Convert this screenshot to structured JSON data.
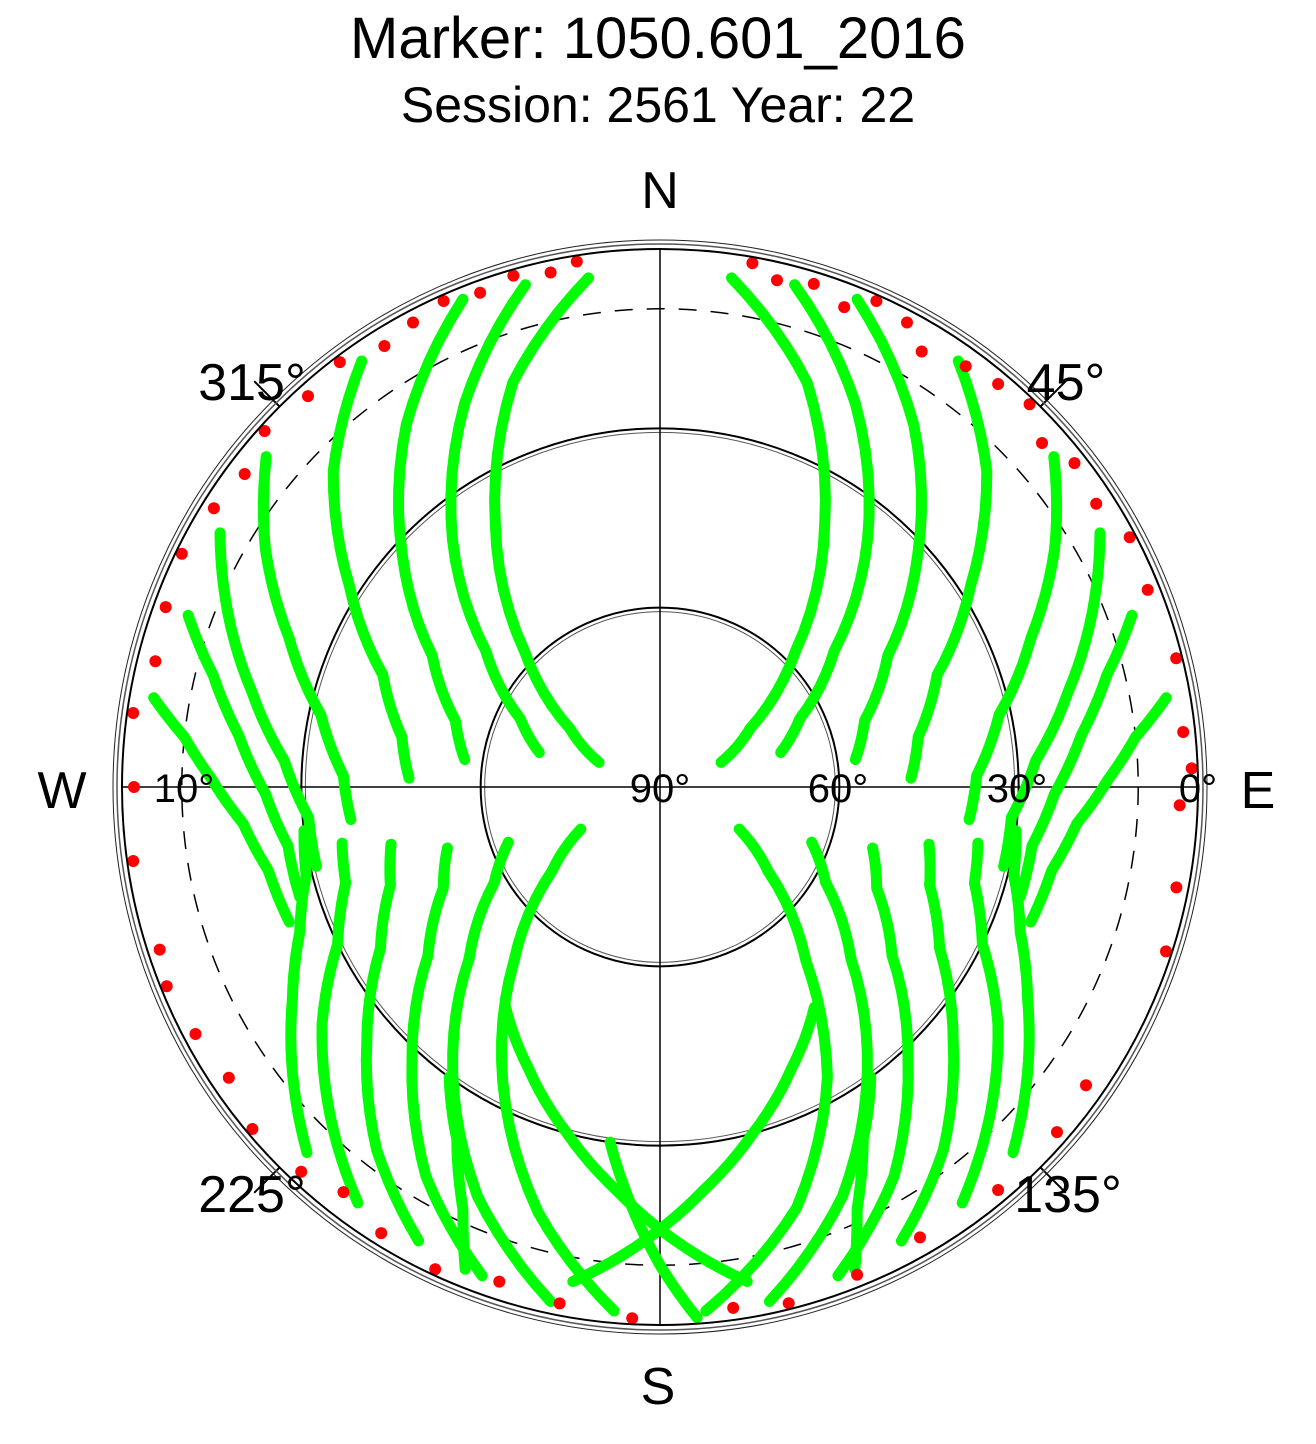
{
  "chart_data": {
    "type": "scatter",
    "projection": "polar sky plot (azimuth / elevation)",
    "title": "Marker: 1050.601_2016",
    "subtitle": "Session: 2561 Year: 22",
    "directions": {
      "north": "N",
      "south": "S",
      "east": "E",
      "west": "W"
    },
    "azimuth_labels": [
      {
        "az": 45,
        "text": "45°"
      },
      {
        "az": 135,
        "text": "135°"
      },
      {
        "az": 225,
        "text": "225°"
      },
      {
        "az": 315,
        "text": "315°"
      }
    ],
    "elevation_labels": [
      {
        "elev": 0,
        "side": "east",
        "text": "0°"
      },
      {
        "elev": 30,
        "side": "east",
        "text": "30°"
      },
      {
        "elev": 60,
        "side": "east",
        "text": "60°"
      },
      {
        "elev": 90,
        "side": "east",
        "text": "90°"
      },
      {
        "elev": 10,
        "side": "west",
        "text": "10°"
      }
    ],
    "elevation_circles": [
      0,
      30,
      60
    ],
    "cutoff_circle": {
      "elev": 10,
      "style": "dashed"
    },
    "elevation_range": [
      0,
      90
    ],
    "grid": true,
    "colors": {
      "tracks": "#00ff00",
      "low_elevation": "#ff0000",
      "grid": "#000000",
      "background": "#ffffff"
    },
    "series": [
      {
        "color": "#00ff00",
        "tracks": [
          {
            "az": [
              8,
              20,
              32,
              45,
              57,
              68
            ],
            "elev": [
              4,
              18,
              38,
              58,
              72,
              79
            ]
          },
          {
            "az": [
              15,
              27,
              40,
              52,
              64,
              74
            ],
            "elev": [
              3,
              18,
              36,
              53,
              64,
              69
            ]
          },
          {
            "az": [
              22,
              35,
              48,
              60,
              72,
              82
            ],
            "elev": [
              2,
              16,
              32,
              46,
              54,
              57
            ]
          },
          {
            "az": [
              35,
              46,
              57,
              68,
              79,
              88
            ],
            "elev": [
              3,
              14,
              28,
              40,
              46,
              48
            ]
          },
          {
            "az": [
              50,
              59,
              68,
              78,
              88,
              96
            ],
            "elev": [
              4,
              13,
              23,
              32,
              37,
              38
            ]
          },
          {
            "az": [
              60,
              68,
              77,
              86,
              95,
              103
            ],
            "elev": [
              5,
              12,
              20,
              27,
              31,
              31
            ]
          },
          {
            "az": [
              70,
              76,
              83,
              91,
              99,
              107
            ],
            "elev": [
              6,
              13,
              19,
              24,
              27,
              27
            ]
          },
          {
            "az": [
              80,
              84,
              89,
              95,
              102,
              110
            ],
            "elev": [
              4,
              10,
              15,
              20,
              23,
              24
            ]
          },
          {
            "az": [
              175,
              162,
              150,
              140,
              128,
              118
            ],
            "elev": [
              2,
              16,
              34,
              52,
              67,
              75
            ]
          },
          {
            "az": [
              168,
              156,
              144,
              132,
              120,
              110
            ],
            "elev": [
              2,
              15,
              31,
              47,
              58,
              63
            ]
          },
          {
            "az": [
              160,
              149,
              138,
              126,
              115,
              106
            ],
            "elev": [
              3,
              14,
              28,
              42,
              50,
              53
            ]
          },
          {
            "az": [
              152,
              142,
              131,
              120,
              110,
              102
            ],
            "elev": [
              4,
              13,
              25,
              36,
              42,
              44
            ]
          },
          {
            "az": [
              144,
              135,
              125,
              116,
              107,
              100
            ],
            "elev": [
              4,
              12,
              21,
              30,
              35,
              36
            ]
          },
          {
            "az": [
              136,
              128,
              120,
              112,
              104,
              97
            ],
            "elev": [
              5,
              12,
              19,
              25,
              29,
              30
            ]
          },
          {
            "az": [
              185,
              196,
              208,
              220,
              232,
              242
            ],
            "elev": [
              2,
              16,
              34,
              52,
              67,
              75
            ]
          },
          {
            "az": [
              192,
              204,
              216,
              228,
              240,
              250
            ],
            "elev": [
              2,
              15,
              31,
              47,
              58,
              63
            ]
          },
          {
            "az": [
              200,
              211,
              222,
              234,
              245,
              254
            ],
            "elev": [
              3,
              14,
              28,
              42,
              50,
              53
            ]
          },
          {
            "az": [
              208,
              218,
              229,
              240,
              250,
              258
            ],
            "elev": [
              4,
              13,
              25,
              36,
              42,
              44
            ]
          },
          {
            "az": [
              216,
              225,
              235,
              244,
              253,
              260
            ],
            "elev": [
              4,
              12,
              21,
              30,
              35,
              36
            ]
          },
          {
            "az": [
              224,
              232,
              240,
              248,
              256,
              263
            ],
            "elev": [
              5,
              12,
              19,
              25,
              29,
              30
            ]
          },
          {
            "az": [
              352,
              340,
              328,
              315,
              303,
              292
            ],
            "elev": [
              4,
              18,
              38,
              58,
              72,
              79
            ]
          },
          {
            "az": [
              345,
              333,
              320,
              308,
              296,
              286
            ],
            "elev": [
              3,
              18,
              36,
              53,
              64,
              69
            ]
          },
          {
            "az": [
              338,
              325,
              312,
              300,
              288,
              278
            ],
            "elev": [
              2,
              16,
              32,
              46,
              54,
              57
            ]
          },
          {
            "az": [
              325,
              314,
              303,
              292,
              281,
              272
            ],
            "elev": [
              3,
              14,
              28,
              40,
              46,
              48
            ]
          },
          {
            "az": [
              310,
              301,
              292,
              282,
              272,
              264
            ],
            "elev": [
              4,
              13,
              23,
              32,
              37,
              38
            ]
          },
          {
            "az": [
              300,
              292,
              283,
              274,
              265,
              257
            ],
            "elev": [
              5,
              12,
              20,
              27,
              31,
              31
            ]
          },
          {
            "az": [
              290,
              284,
              277,
              269,
              261,
              253
            ],
            "elev": [
              6,
              13,
              19,
              24,
              27,
              27
            ]
          },
          {
            "az": [
              280,
              276,
              271,
              265,
              258,
              250
            ],
            "elev": [
              4,
              10,
              15,
              20,
              23,
              24
            ]
          },
          {
            "az": [
              170,
              178,
              186,
              195,
              205,
              215
            ],
            "elev": [
              6,
              14,
              22,
              30,
              38,
              45
            ]
          },
          {
            "az": [
              190,
              182,
              174,
              165,
              155,
              145
            ],
            "elev": [
              6,
              14,
              22,
              30,
              38,
              45
            ]
          },
          {
            "az": [
              176,
              180,
              184,
              188
            ],
            "elev": [
              1,
              10,
              20,
              30
            ]
          },
          {
            "az": [
              158,
              155,
              150,
              144
            ],
            "elev": [
              3,
              12,
              22,
              30
            ]
          },
          {
            "az": [
              202,
              205,
              210,
              216
            ],
            "elev": [
              3,
              12,
              22,
              30
            ]
          }
        ]
      },
      {
        "color": "#ff0000",
        "points": [
          {
            "az": 10,
            "elev": 1
          },
          {
            "az": 13,
            "elev": 3
          },
          {
            "az": 17,
            "elev": 2
          },
          {
            "az": 21,
            "elev": 4
          },
          {
            "az": 24,
            "elev": 1
          },
          {
            "az": 28,
            "elev": 2
          },
          {
            "az": 31,
            "elev": 5
          },
          {
            "az": 36,
            "elev": 3
          },
          {
            "az": 40,
            "elev": 2
          },
          {
            "az": 44,
            "elev": 1
          },
          {
            "az": 48,
            "elev": 4
          },
          {
            "az": 52,
            "elev": 2
          },
          {
            "az": 57,
            "elev": 3
          },
          {
            "az": 62,
            "elev": 1
          },
          {
            "az": 68,
            "elev": 2
          },
          {
            "az": 76,
            "elev": 1
          },
          {
            "az": 84,
            "elev": 2
          },
          {
            "az": 88,
            "elev": 1
          },
          {
            "az": 92,
            "elev": 3
          },
          {
            "az": 101,
            "elev": 2
          },
          {
            "az": 108,
            "elev": 1
          },
          {
            "az": 125,
            "elev": 3
          },
          {
            "az": 131,
            "elev": 2
          },
          {
            "az": 140,
            "elev": 2
          },
          {
            "az": 150,
            "elev": 3
          },
          {
            "az": 158,
            "elev": 2
          },
          {
            "az": 166,
            "elev": 1
          },
          {
            "az": 172,
            "elev": 2
          },
          {
            "az": 183,
            "elev": 1
          },
          {
            "az": 191,
            "elev": 2
          },
          {
            "az": 198,
            "elev": 3
          },
          {
            "az": 205,
            "elev": 1
          },
          {
            "az": 212,
            "elev": 2
          },
          {
            "az": 218,
            "elev": 4
          },
          {
            "az": 223,
            "elev": 2
          },
          {
            "az": 230,
            "elev": 1
          },
          {
            "az": 236,
            "elev": 3
          },
          {
            "az": 242,
            "elev": 2
          },
          {
            "az": 248,
            "elev": 1
          },
          {
            "az": 252,
            "elev": 2
          },
          {
            "az": 262,
            "elev": 1
          },
          {
            "az": 270,
            "elev": 2
          },
          {
            "az": 278,
            "elev": 1
          },
          {
            "az": 284,
            "elev": 3
          },
          {
            "az": 290,
            "elev": 2
          },
          {
            "az": 296,
            "elev": 1
          },
          {
            "az": 302,
            "elev": 2
          },
          {
            "az": 307,
            "elev": 3
          },
          {
            "az": 312,
            "elev": 1
          },
          {
            "az": 318,
            "elev": 2
          },
          {
            "az": 323,
            "elev": 1
          },
          {
            "az": 328,
            "elev": 3
          },
          {
            "az": 332,
            "elev": 2
          },
          {
            "az": 336,
            "elev": 1
          },
          {
            "az": 340,
            "elev": 2
          },
          {
            "az": 344,
            "elev": 1
          },
          {
            "az": 348,
            "elev": 2
          },
          {
            "az": 351,
            "elev": 1
          }
        ]
      }
    ]
  }
}
